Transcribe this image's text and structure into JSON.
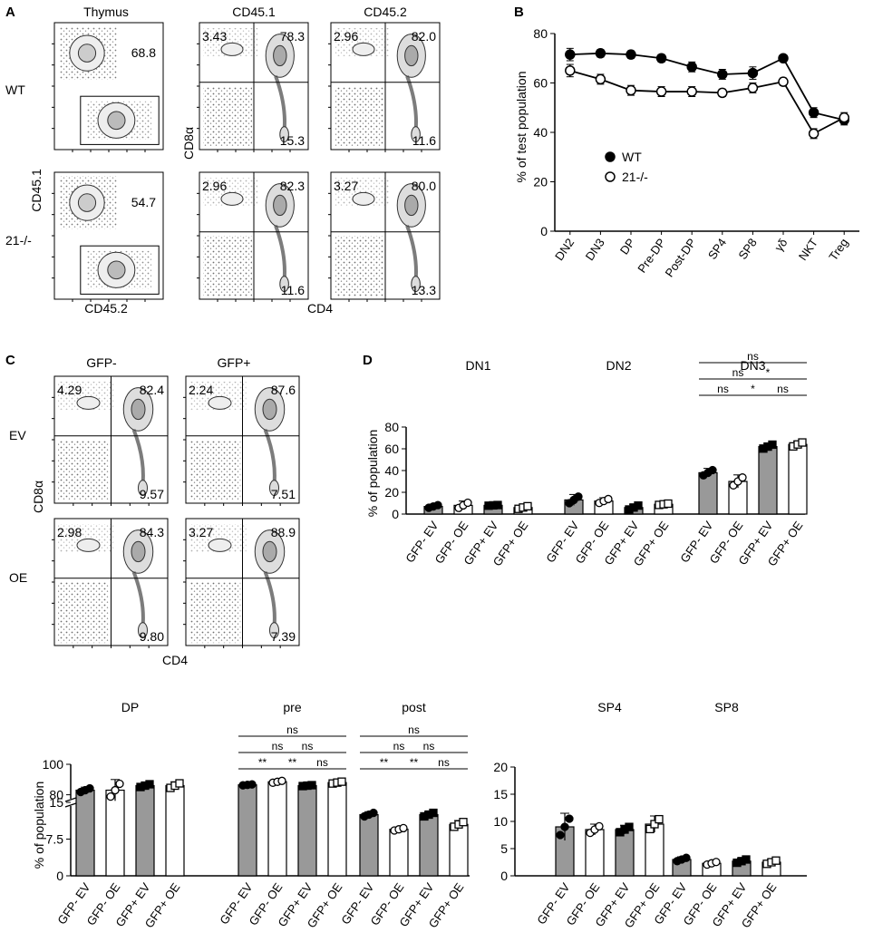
{
  "panel_labels": [
    "A",
    "B",
    "C",
    "D"
  ],
  "panelA": {
    "col_titles": [
      "Thymus",
      "CD45.1",
      "CD45.2"
    ],
    "row_labels": [
      "WT",
      "21-/-"
    ],
    "x_labels": [
      "CD45.2",
      "CD4"
    ],
    "y_labels": [
      "CD45.1",
      "CD8α"
    ],
    "thymus_gate": [
      "68.8",
      "54.7"
    ],
    "quads": [
      {
        "ul": "3.43",
        "ur": "78.3",
        "lr": "15.3"
      },
      {
        "ul": "2.96",
        "ur": "82.0",
        "lr": "11.6"
      },
      {
        "ul": "2.96",
        "ur": "82.3",
        "lr": "11.6"
      },
      {
        "ul": "3.27",
        "ur": "80.0",
        "lr": "13.3"
      }
    ]
  },
  "panelC": {
    "col_titles": [
      "GFP-",
      "GFP+"
    ],
    "row_labels": [
      "EV",
      "OE"
    ],
    "x_label": "CD4",
    "y_label": "CD8α",
    "quads": [
      {
        "ul": "4.29",
        "ur": "82.4",
        "lr": "9.57"
      },
      {
        "ul": "2.24",
        "ur": "87.6",
        "lr": "7.51"
      },
      {
        "ul": "2.98",
        "ur": "84.3",
        "lr": "9.80"
      },
      {
        "ul": "3.27",
        "ur": "88.9",
        "lr": "7.39"
      }
    ]
  },
  "chart_data": [
    {
      "id": "B",
      "type": "line",
      "categories": [
        "DN2",
        "DN3",
        "DP",
        "Pre-DP",
        "Post-DP",
        "SP4",
        "SP8",
        "γδ",
        "NKT",
        "Treg"
      ],
      "series": [
        {
          "name": "WT",
          "values": [
            71.5,
            72,
            71.5,
            70,
            66.5,
            63.5,
            64,
            70,
            48,
            45
          ],
          "errors": [
            2.5,
            1.5,
            1.5,
            1.5,
            2,
            2,
            2.5,
            0.5,
            2,
            2
          ]
        },
        {
          "name": "21-/-",
          "values": [
            65,
            61.5,
            57,
            56.5,
            56.5,
            56,
            58,
            60.5,
            39.5,
            46
          ],
          "errors": [
            2.5,
            2,
            2,
            2,
            2,
            1.5,
            2,
            1.5,
            2,
            2
          ]
        }
      ],
      "ylabel": "% of test population",
      "ylim": [
        0,
        80
      ],
      "yticks": [
        0,
        20,
        40,
        60,
        80
      ]
    },
    {
      "id": "D-top",
      "type": "bar",
      "ylabel": "% of population",
      "ylim": [
        0,
        80
      ],
      "yticks": [
        0,
        20,
        40,
        60,
        80
      ],
      "bar_labels": [
        "GFP- EV",
        "GFP- OE",
        "GFP+ EV",
        "GFP+ OE"
      ],
      "groups": [
        {
          "title": "DN1",
          "values": [
            7,
            8,
            8,
            6
          ],
          "errors": [
            2,
            4,
            0.5,
            2
          ]
        },
        {
          "title": "DN2",
          "values": [
            13,
            12,
            6,
            9
          ],
          "errors": [
            5,
            3,
            3,
            1
          ]
        },
        {
          "title": "DN3",
          "values": [
            38,
            30,
            62,
            64
          ],
          "errors": [
            4,
            6,
            3,
            3
          ],
          "significance": [
            {
              "pair": [
                1,
                2
              ],
              "label": "ns"
            },
            {
              "pair": [
                1,
                3
              ],
              "label": "ns"
            },
            {
              "pair": [
                1,
                4
              ],
              "label": "ns"
            },
            {
              "pair": [
                2,
                3
              ],
              "label": "*"
            },
            {
              "pair": [
                2,
                4
              ],
              "label": "*"
            },
            {
              "pair": [
                3,
                4
              ],
              "label": "ns"
            }
          ]
        }
      ]
    },
    {
      "id": "D-bottom-left",
      "type": "bar",
      "ylabel": "% of population",
      "broken_axis": true,
      "upper_ylim": [
        75,
        100
      ],
      "upper_yticks": [
        80,
        100
      ],
      "lower_ylim": [
        0,
        15
      ],
      "lower_yticks": [
        0,
        7.5,
        15
      ],
      "bar_labels": [
        "GFP- EV",
        "GFP- OE",
        "GFP+ EV",
        "GFP+ OE"
      ],
      "groups": [
        {
          "title": "DP",
          "values": [
            83,
            83,
            86,
            86
          ],
          "errors": [
            2,
            7,
            1.5,
            2.5
          ]
        },
        {
          "title": "pre",
          "values": [
            86.5,
            88.5,
            86,
            88
          ],
          "errors": [
            0.5,
            1,
            0.5,
            1
          ],
          "significance": [
            {
              "pair": [
                1,
                2
              ],
              "label": "**"
            },
            {
              "pair": [
                1,
                3
              ],
              "label": "ns"
            },
            {
              "pair": [
                1,
                4
              ],
              "label": "ns"
            },
            {
              "pair": [
                2,
                3
              ],
              "label": "**"
            },
            {
              "pair": [
                2,
                4
              ],
              "label": "ns"
            },
            {
              "pair": [
                3,
                4
              ],
              "label": "ns"
            }
          ]
        },
        {
          "title": "post",
          "values": [
            12.5,
            9.5,
            12.5,
            10.5
          ],
          "errors": [
            0.6,
            0.4,
            0.6,
            0.8
          ],
          "significance": [
            {
              "pair": [
                1,
                2
              ],
              "label": "**"
            },
            {
              "pair": [
                1,
                3
              ],
              "label": "ns"
            },
            {
              "pair": [
                1,
                4
              ],
              "label": "ns"
            },
            {
              "pair": [
                2,
                3
              ],
              "label": "**"
            },
            {
              "pair": [
                2,
                4
              ],
              "label": "ns"
            },
            {
              "pair": [
                3,
                4
              ],
              "label": "ns"
            }
          ]
        }
      ]
    },
    {
      "id": "D-bottom-right",
      "type": "bar",
      "ylabel": "",
      "ylim": [
        0,
        20
      ],
      "yticks": [
        0,
        5,
        10,
        15,
        20
      ],
      "bar_labels": [
        "GFP- EV",
        "GFP- OE",
        "GFP+ EV",
        "GFP+ OE"
      ],
      "groups": [
        {
          "title": "SP4",
          "values": [
            9,
            8.5,
            8.5,
            9.5
          ],
          "errors": [
            2.5,
            1,
            0.8,
            1.5
          ]
        },
        {
          "title": "SP8",
          "values": [
            3,
            2.3,
            2.7,
            2.5
          ],
          "errors": [
            0.5,
            0.4,
            0.5,
            0.5
          ]
        }
      ]
    }
  ]
}
